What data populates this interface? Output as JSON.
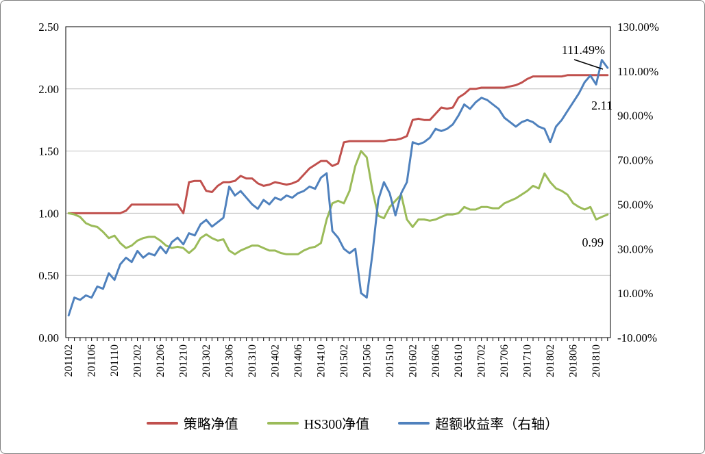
{
  "chart_data": {
    "type": "line",
    "title": "",
    "grid": true,
    "legend_position": "bottom",
    "x_label_every": 4,
    "x": [
      "201102",
      "201103",
      "201104",
      "201105",
      "201106",
      "201107",
      "201108",
      "201109",
      "201110",
      "201111",
      "201112",
      "201201",
      "201202",
      "201203",
      "201204",
      "201205",
      "201206",
      "201207",
      "201208",
      "201209",
      "201210",
      "201211",
      "201212",
      "201301",
      "201302",
      "201303",
      "201304",
      "201305",
      "201306",
      "201307",
      "201308",
      "201309",
      "201310",
      "201311",
      "201312",
      "201401",
      "201402",
      "201403",
      "201404",
      "201405",
      "201406",
      "201407",
      "201408",
      "201409",
      "201410",
      "201411",
      "201412",
      "201501",
      "201502",
      "201503",
      "201504",
      "201505",
      "201506",
      "201507",
      "201508",
      "201509",
      "201510",
      "201511",
      "201512",
      "201601",
      "201602",
      "201603",
      "201604",
      "201605",
      "201606",
      "201607",
      "201608",
      "201609",
      "201610",
      "201611",
      "201612",
      "201701",
      "201702",
      "201703",
      "201704",
      "201705",
      "201706",
      "201707",
      "201708",
      "201709",
      "201710",
      "201711",
      "201712",
      "201801",
      "201802",
      "201803",
      "201804",
      "201805",
      "201806",
      "201807",
      "201808",
      "201809",
      "201810",
      "201811",
      "201812"
    ],
    "left_axis": {
      "min": 0,
      "max": 2.5,
      "tick_labels": [
        "0.00",
        "0.50",
        "1.00",
        "1.50",
        "2.00",
        "2.50"
      ]
    },
    "right_axis": {
      "min": -10,
      "max": 130,
      "tick_labels": [
        "-10.00%",
        "10.00%",
        "30.00%",
        "50.00%",
        "70.00%",
        "90.00%",
        "110.00%",
        "130.00%"
      ]
    },
    "series": [
      {
        "name": "策略净值",
        "axis": "left",
        "color": "#C0504D",
        "values": [
          1.0,
          1.0,
          1.0,
          1.0,
          1.0,
          1.0,
          1.0,
          1.0,
          1.0,
          1.0,
          1.02,
          1.07,
          1.07,
          1.07,
          1.07,
          1.07,
          1.07,
          1.07,
          1.07,
          1.07,
          1.0,
          1.25,
          1.26,
          1.26,
          1.18,
          1.17,
          1.22,
          1.25,
          1.25,
          1.26,
          1.3,
          1.28,
          1.28,
          1.24,
          1.22,
          1.23,
          1.25,
          1.24,
          1.23,
          1.24,
          1.26,
          1.31,
          1.36,
          1.39,
          1.42,
          1.42,
          1.38,
          1.4,
          1.57,
          1.58,
          1.58,
          1.58,
          1.58,
          1.58,
          1.58,
          1.58,
          1.59,
          1.59,
          1.6,
          1.62,
          1.75,
          1.76,
          1.75,
          1.75,
          1.8,
          1.85,
          1.84,
          1.85,
          1.93,
          1.96,
          2.0,
          2.0,
          2.01,
          2.01,
          2.01,
          2.01,
          2.01,
          2.02,
          2.03,
          2.05,
          2.08,
          2.1,
          2.1,
          2.1,
          2.1,
          2.1,
          2.1,
          2.11,
          2.11,
          2.11,
          2.11,
          2.11,
          2.11,
          2.11,
          2.11
        ]
      },
      {
        "name": "HS300净值",
        "axis": "left",
        "color": "#9BBB59",
        "values": [
          1.0,
          0.99,
          0.97,
          0.92,
          0.9,
          0.89,
          0.85,
          0.8,
          0.82,
          0.76,
          0.72,
          0.74,
          0.78,
          0.8,
          0.81,
          0.81,
          0.78,
          0.74,
          0.72,
          0.73,
          0.72,
          0.68,
          0.72,
          0.8,
          0.83,
          0.8,
          0.78,
          0.79,
          0.7,
          0.67,
          0.7,
          0.72,
          0.74,
          0.74,
          0.72,
          0.7,
          0.7,
          0.68,
          0.67,
          0.67,
          0.67,
          0.7,
          0.72,
          0.73,
          0.76,
          0.95,
          1.08,
          1.1,
          1.08,
          1.18,
          1.38,
          1.5,
          1.45,
          1.18,
          0.98,
          0.96,
          1.05,
          1.1,
          1.15,
          0.95,
          0.89,
          0.95,
          0.95,
          0.94,
          0.95,
          0.97,
          0.99,
          0.99,
          1.0,
          1.05,
          1.03,
          1.03,
          1.05,
          1.05,
          1.04,
          1.04,
          1.08,
          1.1,
          1.12,
          1.15,
          1.18,
          1.22,
          1.2,
          1.32,
          1.25,
          1.2,
          1.18,
          1.15,
          1.08,
          1.05,
          1.03,
          1.05,
          0.95,
          0.97,
          0.99
        ]
      },
      {
        "name": "超额收益率（右轴）",
        "axis": "right",
        "color": "#4F81BD",
        "values": [
          0,
          8,
          7,
          9,
          8,
          13,
          12,
          19,
          16,
          23,
          26,
          24,
          29,
          26,
          28,
          27,
          31,
          28,
          33,
          35,
          32,
          37,
          36,
          41,
          43,
          40,
          42,
          44,
          58,
          54,
          56,
          53,
          50,
          48,
          52,
          50,
          53,
          52,
          54,
          53,
          55,
          56,
          58,
          57,
          62,
          64,
          38,
          35,
          30,
          28,
          30,
          10,
          8,
          28,
          52,
          60,
          55,
          45,
          55,
          60,
          78,
          77,
          78,
          80,
          84,
          83,
          84,
          86,
          90,
          95,
          93,
          96,
          98,
          97,
          95,
          93,
          89,
          87,
          85,
          87,
          88,
          87,
          85,
          84,
          78,
          85,
          88,
          92,
          96,
          100,
          105,
          108,
          104,
          115,
          111.49
        ]
      }
    ],
    "annotations": [
      {
        "text": "111.49%",
        "series": "超额收益率（右轴）",
        "value": "111.49%"
      },
      {
        "text": "2.11",
        "series": "策略净值",
        "value": "2.11"
      },
      {
        "text": "0.99",
        "series": "HS300净值",
        "value": "0.99"
      }
    ]
  }
}
